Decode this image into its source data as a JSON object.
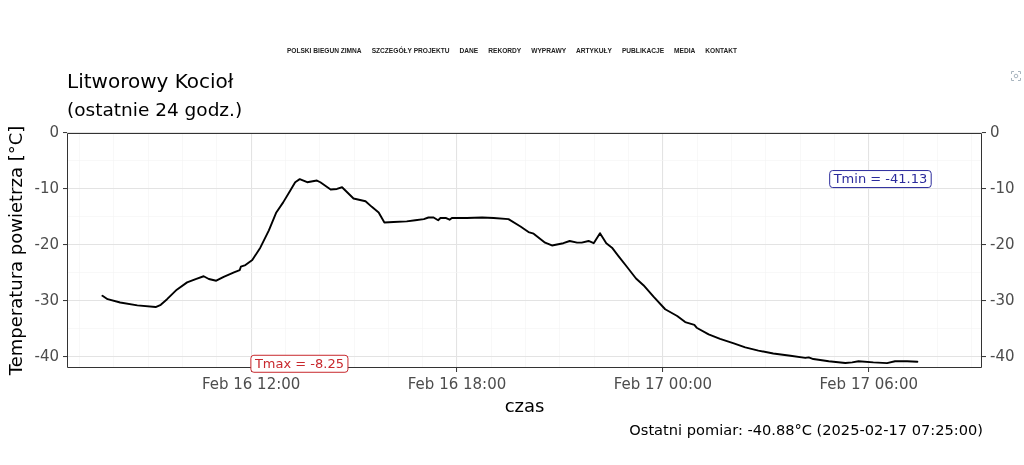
{
  "chart_data": {
    "type": "line",
    "title": "Litworowy Kocioł",
    "subtitle": "(ostatnie 24 godz.)",
    "xlabel": "czas",
    "ylabel": "Temperatura powietrza [°C]",
    "annotations": [
      "POLSKI BIEGUN ZIMNA",
      "SZCZEGÓŁY PROJEKTU",
      "DANE",
      "REKORDY",
      "WYPRAWY",
      "ARTYKUŁY",
      "PUBLIKACJE",
      "MEDIA",
      "KONTAKT",
      "Ostatni pomiar: -40.88°C (2025-02-17 07:25:00)",
      "Tmax = -8.25",
      "Tmin = -41.13"
    ],
    "color": "#000000",
    "x": [
      "2025-02-16T07:40",
      "2025-02-16T07:49",
      "2025-02-16T08:11",
      "2025-02-16T08:41",
      "2025-02-16T09:13",
      "2025-02-16T09:22",
      "2025-02-16T09:33",
      "2025-02-16T09:50",
      "2025-02-16T10:08",
      "2025-02-16T10:23",
      "2025-02-16T10:37",
      "2025-02-16T10:46",
      "2025-02-16T10:59",
      "2025-02-16T11:12",
      "2025-02-16T11:30",
      "2025-02-16T11:40",
      "2025-02-16T11:42",
      "2025-02-16T11:50",
      "2025-02-16T12:02",
      "2025-02-16T12:16",
      "2025-02-16T12:31",
      "2025-02-16T12:44",
      "2025-02-16T12:56",
      "2025-02-16T13:09",
      "2025-02-16T13:17",
      "2025-02-16T13:25",
      "2025-02-16T13:38",
      "2025-02-16T13:55",
      "2025-02-16T14:01",
      "2025-02-16T14:19",
      "2025-02-16T14:30",
      "2025-02-16T14:39",
      "2025-02-16T14:59",
      "2025-02-16T15:20",
      "2025-02-16T15:31",
      "2025-02-16T15:43",
      "2025-02-16T15:53",
      "2025-02-16T16:09",
      "2025-02-16T16:32",
      "2025-02-16T16:47",
      "2025-02-16T17:02",
      "2025-02-16T17:10",
      "2025-02-16T17:19",
      "2025-02-16T17:27",
      "2025-02-16T17:31",
      "2025-02-16T17:41",
      "2025-02-16T17:47",
      "2025-02-16T17:51",
      "2025-02-16T18:17",
      "2025-02-16T18:44",
      "2025-02-16T19:04",
      "2025-02-16T19:30",
      "2025-02-16T19:51",
      "2025-02-16T20:05",
      "2025-02-16T20:14",
      "2025-02-16T20:34",
      "2025-02-16T20:46",
      "2025-02-16T21:06",
      "2025-02-16T21:17",
      "2025-02-16T21:30",
      "2025-02-16T21:38",
      "2025-02-16T21:50",
      "2025-02-16T21:59",
      "2025-02-16T22:10",
      "2025-02-16T22:21",
      "2025-02-16T22:31",
      "2025-02-16T22:43",
      "2025-02-16T22:57",
      "2025-02-16T23:13",
      "2025-02-16T23:26",
      "2025-02-16T23:44",
      "2025-02-17T00:04",
      "2025-02-17T00:25",
      "2025-02-17T00:39",
      "2025-02-17T00:55",
      "2025-02-17T00:59",
      "2025-02-17T01:20",
      "2025-02-17T01:40",
      "2025-02-17T02:04",
      "2025-02-17T02:24",
      "2025-02-17T02:47",
      "2025-02-17T03:13",
      "2025-02-17T03:43",
      "2025-02-17T04:09",
      "2025-02-17T04:15",
      "2025-02-17T04:23",
      "2025-02-17T04:50",
      "2025-02-17T05:19",
      "2025-02-17T05:31",
      "2025-02-17T05:42",
      "2025-02-17T06:08",
      "2025-02-17T06:32",
      "2025-02-17T06:46",
      "2025-02-17T07:07",
      "2025-02-17T07:25"
    ],
    "values": [
      -29.1,
      -29.7,
      -30.3,
      -30.8,
      -31.1,
      -30.7,
      -29.7,
      -28.0,
      -26.7,
      -26.1,
      -25.6,
      -26.1,
      -26.4,
      -25.7,
      -24.9,
      -24.5,
      -23.9,
      -23.6,
      -22.7,
      -20.5,
      -17.4,
      -14.2,
      -12.4,
      -10.2,
      -8.8,
      -8.25,
      -8.8,
      -8.5,
      -8.8,
      -10.1,
      -10.0,
      -9.7,
      -11.7,
      -12.2,
      -13.2,
      -14.2,
      -16.0,
      -15.9,
      -15.8,
      -15.6,
      -15.4,
      -15.1,
      -15.1,
      -15.6,
      -15.2,
      -15.2,
      -15.5,
      -15.2,
      -15.2,
      -15.1,
      -15.2,
      -15.4,
      -16.7,
      -17.7,
      -18.0,
      -19.6,
      -20.1,
      -19.7,
      -19.3,
      -19.6,
      -19.6,
      -19.3,
      -19.7,
      -17.9,
      -19.7,
      -20.5,
      -22.1,
      -23.9,
      -26.0,
      -27.2,
      -29.3,
      -31.5,
      -32.7,
      -33.8,
      -34.3,
      -34.8,
      -36.0,
      -36.8,
      -37.6,
      -38.3,
      -38.9,
      -39.4,
      -39.8,
      -40.2,
      -40.1,
      -40.4,
      -40.8,
      -41.1,
      -41.0,
      -40.8,
      -41.0,
      -41.13,
      -40.8,
      -40.8,
      -40.88
    ],
    "xlim": [
      "2025-02-16T06:38",
      "2025-02-17T09:18"
    ],
    "xticks": [
      {
        "value": "2025-02-16T07:00",
        "label": null
      },
      {
        "value": "2025-02-16T08:00",
        "label": null
      },
      {
        "value": "2025-02-16T09:00",
        "label": null
      },
      {
        "value": "2025-02-16T10:00",
        "label": null
      },
      {
        "value": "2025-02-16T11:00",
        "label": null
      },
      {
        "value": "2025-02-16T12:00",
        "label": "Feb 16 12:00"
      },
      {
        "value": "2025-02-16T13:00",
        "label": null
      },
      {
        "value": "2025-02-16T14:00",
        "label": null
      },
      {
        "value": "2025-02-16T15:00",
        "label": null
      },
      {
        "value": "2025-02-16T16:00",
        "label": null
      },
      {
        "value": "2025-02-16T17:00",
        "label": null
      },
      {
        "value": "2025-02-16T18:00",
        "label": "Feb 16 18:00"
      },
      {
        "value": "2025-02-16T19:00",
        "label": null
      },
      {
        "value": "2025-02-16T20:00",
        "label": null
      },
      {
        "value": "2025-02-16T21:00",
        "label": null
      },
      {
        "value": "2025-02-16T22:00",
        "label": null
      },
      {
        "value": "2025-02-16T23:00",
        "label": null
      },
      {
        "value": "2025-02-17T00:00",
        "label": "Feb 17 00:00"
      },
      {
        "value": "2025-02-17T01:00",
        "label": null
      },
      {
        "value": "2025-02-17T02:00",
        "label": null
      },
      {
        "value": "2025-02-17T03:00",
        "label": null
      },
      {
        "value": "2025-02-17T04:00",
        "label": null
      },
      {
        "value": "2025-02-17T05:00",
        "label": null
      },
      {
        "value": "2025-02-17T06:00",
        "label": "Feb 17 06:00"
      },
      {
        "value": "2025-02-17T07:00",
        "label": null
      },
      {
        "value": "2025-02-17T08:00",
        "label": null
      },
      {
        "value": "2025-02-17T09:00",
        "label": null
      }
    ],
    "ylim": [
      -42,
      0
    ],
    "yticks": [
      -40,
      {
        "value": -35,
        "label": null
      },
      -30,
      {
        "value": -25,
        "label": null
      },
      -20,
      {
        "value": -15,
        "label": null
      },
      -10,
      {
        "value": -5,
        "label": null
      },
      0
    ],
    "y2lim": [
      -42,
      0
    ],
    "y2ticks": [
      -40,
      -30,
      -20,
      -10,
      0
    ],
    "grid": true
  }
}
